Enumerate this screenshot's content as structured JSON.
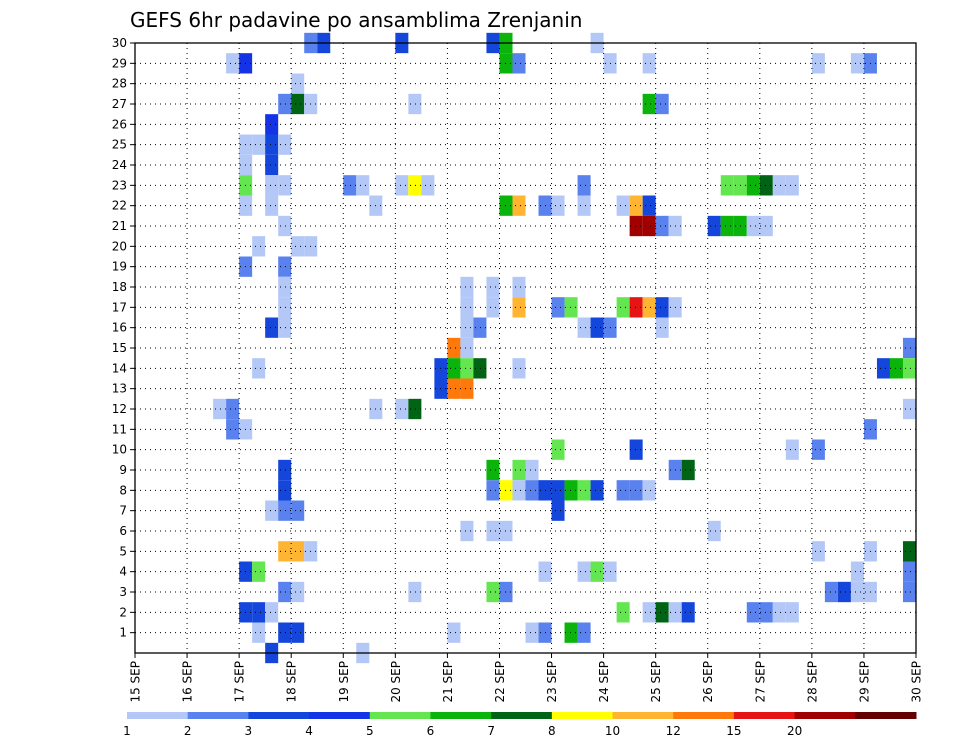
{
  "chart_data": {
    "type": "heatmap",
    "title": "GEFS 6hr padavine po ansamblima Zrenjanin",
    "x_tick_labels": [
      "15 SEP",
      "16 SEP",
      "17 SEP",
      "18 SEP",
      "19 SEP",
      "20 SEP",
      "21 SEP",
      "22 SEP",
      "23 SEP",
      "24 SEP",
      "25 SEP",
      "26 SEP",
      "27 SEP",
      "28 SEP",
      "29 SEP",
      "30 SEP"
    ],
    "y_tick_labels": [
      "1",
      "2",
      "3",
      "4",
      "5",
      "6",
      "7",
      "8",
      "9",
      "10",
      "11",
      "12",
      "13",
      "14",
      "15",
      "16",
      "17",
      "18",
      "19",
      "20",
      "21",
      "22",
      "23",
      "24",
      "25",
      "26",
      "27",
      "28",
      "29",
      "30"
    ],
    "x_range_days": [
      15,
      30
    ],
    "y_range": [
      0,
      30
    ],
    "grid": true,
    "legend": {
      "placement": "bottom",
      "labels": [
        "1",
        "2",
        "3",
        "4",
        "5",
        "6",
        "7",
        "8",
        "10",
        "12",
        "15",
        "20"
      ],
      "colors": [
        "#b4c8f8",
        "#5a82ee",
        "#1446dc",
        "#1432e6",
        "#64e650",
        "#0ab40a",
        "#006414",
        "#ffff00",
        "#ffb432",
        "#ff780a",
        "#e61414",
        "#a00000",
        "#640000"
      ]
    },
    "color_levels": [
      1,
      2,
      3,
      4,
      5,
      6,
      7,
      8,
      10,
      12,
      15,
      20
    ],
    "cells": [
      {
        "m": 30,
        "d": 18.25,
        "v": 2
      },
      {
        "m": 30,
        "d": 18.5,
        "v": 3
      },
      {
        "m": 30,
        "d": 20.0,
        "v": 3
      },
      {
        "m": 30,
        "d": 21.75,
        "v": 3
      },
      {
        "m": 30,
        "d": 22.0,
        "v": 6
      },
      {
        "m": 30,
        "d": 23.75,
        "v": 1
      },
      {
        "m": 29,
        "d": 16.75,
        "v": 1
      },
      {
        "m": 29,
        "d": 17.0,
        "v": 4
      },
      {
        "m": 29,
        "d": 22.0,
        "v": 6
      },
      {
        "m": 29,
        "d": 22.25,
        "v": 2
      },
      {
        "m": 29,
        "d": 24.0,
        "v": 1
      },
      {
        "m": 29,
        "d": 24.75,
        "v": 1
      },
      {
        "m": 29,
        "d": 28.0,
        "v": 1
      },
      {
        "m": 29,
        "d": 28.75,
        "v": 1
      },
      {
        "m": 29,
        "d": 29.0,
        "v": 2
      },
      {
        "m": 28,
        "d": 18.0,
        "v": 1
      },
      {
        "m": 27,
        "d": 17.75,
        "v": 2
      },
      {
        "m": 27,
        "d": 18.0,
        "v": 7
      },
      {
        "m": 27,
        "d": 18.25,
        "v": 1
      },
      {
        "m": 27,
        "d": 20.25,
        "v": 1
      },
      {
        "m": 27,
        "d": 24.75,
        "v": 6
      },
      {
        "m": 27,
        "d": 25.0,
        "v": 2
      },
      {
        "m": 26,
        "d": 17.5,
        "v": 4
      },
      {
        "m": 25,
        "d": 17.0,
        "v": 1
      },
      {
        "m": 25,
        "d": 17.25,
        "v": 1
      },
      {
        "m": 25,
        "d": 17.5,
        "v": 3
      },
      {
        "m": 25,
        "d": 17.75,
        "v": 1
      },
      {
        "m": 24,
        "d": 17.0,
        "v": 1
      },
      {
        "m": 24,
        "d": 17.5,
        "v": 3
      },
      {
        "m": 23,
        "d": 17.0,
        "v": 5
      },
      {
        "m": 23,
        "d": 17.5,
        "v": 1
      },
      {
        "m": 23,
        "d": 17.75,
        "v": 1
      },
      {
        "m": 23,
        "d": 19.0,
        "v": 2
      },
      {
        "m": 23,
        "d": 19.25,
        "v": 1
      },
      {
        "m": 23,
        "d": 20.0,
        "v": 1
      },
      {
        "m": 23,
        "d": 20.25,
        "v": 8
      },
      {
        "m": 23,
        "d": 20.5,
        "v": 1
      },
      {
        "m": 23,
        "d": 23.5,
        "v": 2
      },
      {
        "m": 23,
        "d": 26.25,
        "v": 5
      },
      {
        "m": 23,
        "d": 26.5,
        "v": 5
      },
      {
        "m": 23,
        "d": 26.75,
        "v": 6
      },
      {
        "m": 23,
        "d": 27.0,
        "v": 7
      },
      {
        "m": 23,
        "d": 27.25,
        "v": 1
      },
      {
        "m": 23,
        "d": 27.5,
        "v": 1
      },
      {
        "m": 22,
        "d": 17.0,
        "v": 1
      },
      {
        "m": 22,
        "d": 17.5,
        "v": 1
      },
      {
        "m": 22,
        "d": 19.5,
        "v": 1
      },
      {
        "m": 22,
        "d": 22.0,
        "v": 6
      },
      {
        "m": 22,
        "d": 22.25,
        "v": 10
      },
      {
        "m": 22,
        "d": 22.75,
        "v": 2
      },
      {
        "m": 22,
        "d": 23.0,
        "v": 1
      },
      {
        "m": 22,
        "d": 23.5,
        "v": 1
      },
      {
        "m": 22,
        "d": 24.25,
        "v": 1
      },
      {
        "m": 22,
        "d": 24.5,
        "v": 10
      },
      {
        "m": 22,
        "d": 24.75,
        "v": 3
      },
      {
        "m": 21,
        "d": 17.75,
        "v": 1
      },
      {
        "m": 21,
        "d": 24.5,
        "v": 20
      },
      {
        "m": 21,
        "d": 24.75,
        "v": 20
      },
      {
        "m": 21,
        "d": 25.0,
        "v": 2
      },
      {
        "m": 21,
        "d": 25.25,
        "v": 1
      },
      {
        "m": 21,
        "d": 26.0,
        "v": 3
      },
      {
        "m": 21,
        "d": 26.25,
        "v": 6
      },
      {
        "m": 21,
        "d": 26.5,
        "v": 6
      },
      {
        "m": 21,
        "d": 26.75,
        "v": 1
      },
      {
        "m": 21,
        "d": 27.0,
        "v": 1
      },
      {
        "m": 20,
        "d": 17.25,
        "v": 1
      },
      {
        "m": 20,
        "d": 18.0,
        "v": 1
      },
      {
        "m": 20,
        "d": 18.25,
        "v": 1
      },
      {
        "m": 19,
        "d": 17.0,
        "v": 2
      },
      {
        "m": 19,
        "d": 17.75,
        "v": 2
      },
      {
        "m": 18,
        "d": 17.75,
        "v": 1
      },
      {
        "m": 18,
        "d": 21.25,
        "v": 1
      },
      {
        "m": 18,
        "d": 21.75,
        "v": 1
      },
      {
        "m": 18,
        "d": 22.25,
        "v": 1
      },
      {
        "m": 17,
        "d": 17.75,
        "v": 1
      },
      {
        "m": 17,
        "d": 21.25,
        "v": 1
      },
      {
        "m": 17,
        "d": 21.75,
        "v": 1
      },
      {
        "m": 17,
        "d": 22.25,
        "v": 10
      },
      {
        "m": 17,
        "d": 23.0,
        "v": 2
      },
      {
        "m": 17,
        "d": 23.25,
        "v": 5
      },
      {
        "m": 17,
        "d": 24.25,
        "v": 5
      },
      {
        "m": 17,
        "d": 24.5,
        "v": 15
      },
      {
        "m": 17,
        "d": 24.75,
        "v": 10
      },
      {
        "m": 17,
        "d": 25.0,
        "v": 3
      },
      {
        "m": 17,
        "d": 25.25,
        "v": 1
      },
      {
        "m": 16,
        "d": 17.5,
        "v": 3
      },
      {
        "m": 16,
        "d": 17.75,
        "v": 1
      },
      {
        "m": 16,
        "d": 21.25,
        "v": 1
      },
      {
        "m": 16,
        "d": 21.5,
        "v": 2
      },
      {
        "m": 16,
        "d": 23.5,
        "v": 1
      },
      {
        "m": 16,
        "d": 23.75,
        "v": 3
      },
      {
        "m": 16,
        "d": 24.0,
        "v": 2
      },
      {
        "m": 16,
        "d": 25.0,
        "v": 1
      },
      {
        "m": 15,
        "d": 21.0,
        "v": 12
      },
      {
        "m": 15,
        "d": 21.25,
        "v": 1
      },
      {
        "m": 15,
        "d": 29.75,
        "v": 2
      },
      {
        "m": 14,
        "d": 17.25,
        "v": 1
      },
      {
        "m": 14,
        "d": 20.75,
        "v": 3
      },
      {
        "m": 14,
        "d": 21.0,
        "v": 6
      },
      {
        "m": 14,
        "d": 21.25,
        "v": 5
      },
      {
        "m": 14,
        "d": 21.5,
        "v": 7
      },
      {
        "m": 14,
        "d": 22.25,
        "v": 1
      },
      {
        "m": 14,
        "d": 29.25,
        "v": 3
      },
      {
        "m": 14,
        "d": 29.5,
        "v": 6
      },
      {
        "m": 14,
        "d": 29.75,
        "v": 5
      },
      {
        "m": 13,
        "d": 20.75,
        "v": 3
      },
      {
        "m": 13,
        "d": 21.0,
        "v": 12
      },
      {
        "m": 13,
        "d": 21.25,
        "v": 12
      },
      {
        "m": 12,
        "d": 16.5,
        "v": 1
      },
      {
        "m": 12,
        "d": 16.75,
        "v": 2
      },
      {
        "m": 12,
        "d": 19.5,
        "v": 1
      },
      {
        "m": 12,
        "d": 20.0,
        "v": 1
      },
      {
        "m": 12,
        "d": 20.25,
        "v": 7
      },
      {
        "m": 12,
        "d": 29.75,
        "v": 1
      },
      {
        "m": 11,
        "d": 16.75,
        "v": 2
      },
      {
        "m": 11,
        "d": 17.0,
        "v": 1
      },
      {
        "m": 11,
        "d": 29.0,
        "v": 2
      },
      {
        "m": 10,
        "d": 23.0,
        "v": 5
      },
      {
        "m": 10,
        "d": 24.5,
        "v": 3
      },
      {
        "m": 10,
        "d": 27.5,
        "v": 1
      },
      {
        "m": 10,
        "d": 28.0,
        "v": 2
      },
      {
        "m": 9,
        "d": 17.75,
        "v": 3
      },
      {
        "m": 9,
        "d": 21.75,
        "v": 6
      },
      {
        "m": 9,
        "d": 22.25,
        "v": 5
      },
      {
        "m": 9,
        "d": 22.5,
        "v": 1
      },
      {
        "m": 9,
        "d": 25.25,
        "v": 2
      },
      {
        "m": 9,
        "d": 25.5,
        "v": 7
      },
      {
        "m": 8,
        "d": 17.75,
        "v": 3
      },
      {
        "m": 8,
        "d": 21.75,
        "v": 2
      },
      {
        "m": 8,
        "d": 22.0,
        "v": 8
      },
      {
        "m": 8,
        "d": 22.25,
        "v": 1
      },
      {
        "m": 8,
        "d": 22.5,
        "v": 2
      },
      {
        "m": 8,
        "d": 22.75,
        "v": 3
      },
      {
        "m": 8,
        "d": 23.0,
        "v": 3
      },
      {
        "m": 8,
        "d": 23.25,
        "v": 6
      },
      {
        "m": 8,
        "d": 23.5,
        "v": 5
      },
      {
        "m": 8,
        "d": 23.75,
        "v": 3
      },
      {
        "m": 8,
        "d": 24.25,
        "v": 2
      },
      {
        "m": 8,
        "d": 24.5,
        "v": 2
      },
      {
        "m": 8,
        "d": 24.75,
        "v": 1
      },
      {
        "m": 7,
        "d": 17.5,
        "v": 1
      },
      {
        "m": 7,
        "d": 17.75,
        "v": 2
      },
      {
        "m": 7,
        "d": 18.0,
        "v": 2
      },
      {
        "m": 7,
        "d": 23.0,
        "v": 3
      },
      {
        "m": 6,
        "d": 21.25,
        "v": 1
      },
      {
        "m": 6,
        "d": 21.75,
        "v": 1
      },
      {
        "m": 6,
        "d": 22.0,
        "v": 1
      },
      {
        "m": 6,
        "d": 26.0,
        "v": 1
      },
      {
        "m": 5,
        "d": 17.75,
        "v": 10
      },
      {
        "m": 5,
        "d": 18.0,
        "v": 10
      },
      {
        "m": 5,
        "d": 18.25,
        "v": 1
      },
      {
        "m": 5,
        "d": 28.0,
        "v": 1
      },
      {
        "m": 5,
        "d": 29.0,
        "v": 1
      },
      {
        "m": 5,
        "d": 29.75,
        "v": 7
      },
      {
        "m": 4,
        "d": 17.0,
        "v": 3
      },
      {
        "m": 4,
        "d": 17.25,
        "v": 5
      },
      {
        "m": 4,
        "d": 22.75,
        "v": 1
      },
      {
        "m": 4,
        "d": 23.5,
        "v": 1
      },
      {
        "m": 4,
        "d": 23.75,
        "v": 5
      },
      {
        "m": 4,
        "d": 24.0,
        "v": 1
      },
      {
        "m": 4,
        "d": 28.75,
        "v": 1
      },
      {
        "m": 4,
        "d": 29.75,
        "v": 2
      },
      {
        "m": 3,
        "d": 17.75,
        "v": 2
      },
      {
        "m": 3,
        "d": 18.0,
        "v": 1
      },
      {
        "m": 3,
        "d": 20.25,
        "v": 1
      },
      {
        "m": 3,
        "d": 21.75,
        "v": 5
      },
      {
        "m": 3,
        "d": 22.0,
        "v": 2
      },
      {
        "m": 3,
        "d": 28.25,
        "v": 2
      },
      {
        "m": 3,
        "d": 28.5,
        "v": 3
      },
      {
        "m": 3,
        "d": 28.75,
        "v": 1
      },
      {
        "m": 3,
        "d": 29.0,
        "v": 1
      },
      {
        "m": 3,
        "d": 29.75,
        "v": 2
      },
      {
        "m": 2,
        "d": 17.0,
        "v": 3
      },
      {
        "m": 2,
        "d": 17.25,
        "v": 3
      },
      {
        "m": 2,
        "d": 17.5,
        "v": 1
      },
      {
        "m": 2,
        "d": 24.25,
        "v": 5
      },
      {
        "m": 2,
        "d": 24.75,
        "v": 1
      },
      {
        "m": 2,
        "d": 25.0,
        "v": 7
      },
      {
        "m": 2,
        "d": 25.25,
        "v": 1
      },
      {
        "m": 2,
        "d": 25.5,
        "v": 3
      },
      {
        "m": 2,
        "d": 26.75,
        "v": 2
      },
      {
        "m": 2,
        "d": 27.0,
        "v": 2
      },
      {
        "m": 2,
        "d": 27.25,
        "v": 1
      },
      {
        "m": 2,
        "d": 27.5,
        "v": 1
      },
      {
        "m": 1,
        "d": 17.25,
        "v": 1
      },
      {
        "m": 1,
        "d": 17.75,
        "v": 3
      },
      {
        "m": 1,
        "d": 18.0,
        "v": 3
      },
      {
        "m": 1,
        "d": 21.0,
        "v": 1
      },
      {
        "m": 1,
        "d": 22.5,
        "v": 1
      },
      {
        "m": 1,
        "d": 22.75,
        "v": 2
      },
      {
        "m": 1,
        "d": 23.25,
        "v": 6
      },
      {
        "m": 1,
        "d": 23.5,
        "v": 2
      },
      {
        "m": 0,
        "d": 17.5,
        "v": 3
      },
      {
        "m": 0,
        "d": 19.25,
        "v": 1
      }
    ]
  }
}
